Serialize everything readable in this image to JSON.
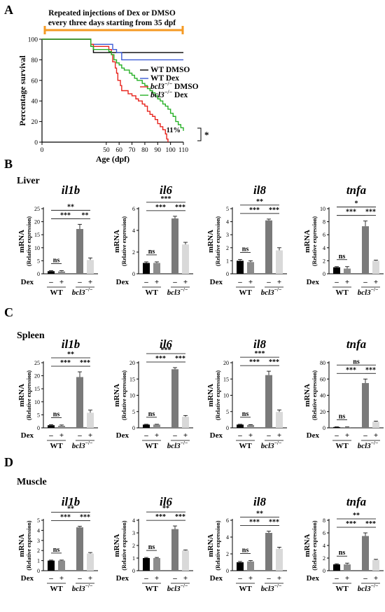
{
  "panel_labels": {
    "a": "A",
    "b": "B",
    "c": "C",
    "d": "D"
  },
  "tissues": {
    "b": "Liver",
    "c": "Spleen",
    "d": "Muscle"
  },
  "treatment": {
    "label": "Repeated injections of Dex or DMSO",
    "label2": "every three days starting from 35 dpf"
  },
  "bar_common": {
    "ylabel1": "mRNA",
    "ylabel2": "(Relative expression)",
    "dex_label": "Dex",
    "minus": "–",
    "plus": "+",
    "wt_label": "WT",
    "mutant_label": "bcl3",
    "mutant_sup": "−/−",
    "bar_colors": [
      "#000000",
      "#8c8c8c",
      "#7a7a7a",
      "#d9d9d9"
    ]
  },
  "chart_data": [
    {
      "type": "line",
      "panel": "A",
      "xlabel": "Age (dpf)",
      "ylabel": "Percentage survival",
      "xlim": [
        0,
        110
      ],
      "ylim": [
        0,
        100
      ],
      "xticks": [
        0,
        50,
        60,
        70,
        80,
        90,
        100,
        110
      ],
      "yticks": [
        0,
        20,
        40,
        60,
        80,
        100
      ],
      "annotation": "11%",
      "significance": "*",
      "series": [
        {
          "name": "WT DMSO",
          "color": "#000000",
          "x": [
            0,
            35,
            38,
            40,
            110
          ],
          "y": [
            100,
            100,
            93,
            87,
            87
          ]
        },
        {
          "name": "WT Dex",
          "color": "#3b5bd6",
          "x": [
            0,
            35,
            38,
            50,
            55,
            58,
            62,
            110
          ],
          "y": [
            100,
            100,
            95,
            95,
            90,
            87,
            80,
            80
          ]
        },
        {
          "name": "bcl3 DMSO",
          "name_sup": "−/−",
          "color": "#e8231c",
          "x": [
            0,
            35,
            38,
            40,
            49,
            52,
            54,
            55,
            57,
            58,
            59,
            61,
            62,
            65,
            67,
            70,
            73,
            75,
            78,
            80,
            82,
            84,
            86,
            88,
            90,
            92,
            94,
            96,
            97,
            98
          ],
          "y": [
            100,
            100,
            95,
            93,
            93,
            90,
            85,
            78,
            72,
            67,
            60,
            55,
            50,
            50,
            47,
            45,
            42,
            40,
            37,
            35,
            30,
            27,
            25,
            22,
            18,
            15,
            12,
            8,
            3,
            0
          ]
        },
        {
          "name": "bcl3 Dex",
          "name_sup": "−/−",
          "color": "#27b027",
          "x": [
            0,
            35,
            38,
            40,
            49,
            52,
            54,
            56,
            58,
            60,
            62,
            64,
            66,
            68,
            70,
            72,
            74,
            76,
            78,
            80,
            82,
            84,
            86,
            88,
            90,
            92,
            94,
            96,
            98,
            100,
            102,
            104,
            106,
            108,
            110
          ],
          "y": [
            100,
            100,
            93,
            90,
            90,
            88,
            85,
            80,
            77,
            75,
            72,
            70,
            70,
            67,
            65,
            62,
            60,
            60,
            57,
            55,
            52,
            50,
            48,
            45,
            42,
            40,
            37,
            35,
            32,
            28,
            25,
            20,
            17,
            14,
            11
          ]
        }
      ]
    },
    {
      "type": "bar",
      "panel": "B",
      "tissue": "Liver",
      "gene": "il1b",
      "categories": [
        "WT -",
        "WT +",
        "bcl3-/- -",
        "bcl3-/- +"
      ],
      "values": [
        1.0,
        0.9,
        17.2,
        5.3
      ],
      "errors": [
        0.2,
        0.3,
        1.8,
        0.8
      ],
      "ylim": [
        0,
        25
      ],
      "yticks": [
        0,
        5,
        10,
        15,
        20,
        25
      ],
      "significance": [
        {
          "a": 0,
          "b": 1,
          "text": "ns"
        },
        {
          "a": 0,
          "b": 2,
          "text": "***"
        },
        {
          "a": 2,
          "b": 3,
          "text": "**"
        },
        {
          "a": 0,
          "b": 3,
          "text": "**"
        }
      ]
    },
    {
      "type": "bar",
      "panel": "B",
      "tissue": "Liver",
      "gene": "il6",
      "categories": [
        "WT -",
        "WT +",
        "bcl3-/- -",
        "bcl3-/- +"
      ],
      "values": [
        1.0,
        1.0,
        5.1,
        2.7
      ],
      "errors": [
        0.1,
        0.1,
        0.2,
        0.2
      ],
      "ylim": [
        0,
        6
      ],
      "yticks": [
        0,
        2,
        4,
        6
      ],
      "significance": [
        {
          "a": 0,
          "b": 1,
          "text": "ns"
        },
        {
          "a": 0,
          "b": 2,
          "text": "***"
        },
        {
          "a": 2,
          "b": 3,
          "text": "***"
        },
        {
          "a": 0,
          "b": 3,
          "text": "***"
        }
      ]
    },
    {
      "type": "bar",
      "panel": "B",
      "tissue": "Liver",
      "gene": "il8",
      "categories": [
        "WT -",
        "WT +",
        "bcl3-/- -",
        "bcl3-/- +"
      ],
      "values": [
        1.0,
        0.9,
        4.1,
        1.8
      ],
      "errors": [
        0.1,
        0.1,
        0.1,
        0.2
      ],
      "ylim": [
        0,
        5
      ],
      "yticks": [
        0,
        1,
        2,
        3,
        4,
        5
      ],
      "significance": [
        {
          "a": 0,
          "b": 1,
          "text": "ns"
        },
        {
          "a": 0,
          "b": 2,
          "text": "***"
        },
        {
          "a": 2,
          "b": 3,
          "text": "***"
        },
        {
          "a": 0,
          "b": 3,
          "text": "**"
        }
      ]
    },
    {
      "type": "bar",
      "panel": "B",
      "tissue": "Liver",
      "gene": "tnfa",
      "categories": [
        "WT -",
        "WT +",
        "bcl3-/- -",
        "bcl3-/- +"
      ],
      "values": [
        1.0,
        0.8,
        7.3,
        2.0
      ],
      "errors": [
        0.1,
        0.3,
        0.8,
        0.1
      ],
      "ylim": [
        0,
        10
      ],
      "yticks": [
        0,
        2,
        4,
        6,
        8,
        10
      ],
      "significance": [
        {
          "a": 0,
          "b": 1,
          "text": "ns"
        },
        {
          "a": 0,
          "b": 2,
          "text": "***"
        },
        {
          "a": 2,
          "b": 3,
          "text": "***"
        },
        {
          "a": 0,
          "b": 3,
          "text": "*"
        }
      ]
    },
    {
      "type": "bar",
      "panel": "C",
      "tissue": "Spleen",
      "gene": "il1b",
      "categories": [
        "WT -",
        "WT +",
        "bcl3-/- -",
        "bcl3-/- +"
      ],
      "values": [
        1.0,
        0.8,
        19.5,
        5.8
      ],
      "errors": [
        0.2,
        0.3,
        2.0,
        1.0
      ],
      "ylim": [
        0,
        25
      ],
      "yticks": [
        0,
        5,
        10,
        15,
        20,
        25
      ],
      "significance": [
        {
          "a": 0,
          "b": 1,
          "text": "ns"
        },
        {
          "a": 0,
          "b": 2,
          "text": "***"
        },
        {
          "a": 2,
          "b": 3,
          "text": "***"
        },
        {
          "a": 0,
          "b": 3,
          "text": "**"
        }
      ]
    },
    {
      "type": "bar",
      "panel": "C",
      "tissue": "Spleen",
      "gene": "il6",
      "categories": [
        "WT -",
        "WT +",
        "bcl3-/- -",
        "bcl3-/- +"
      ],
      "values": [
        1.0,
        1.0,
        18.0,
        3.4
      ],
      "errors": [
        0.1,
        0.1,
        0.5,
        0.4
      ],
      "ylim": [
        0,
        20
      ],
      "yticks": [
        0,
        5,
        10,
        15,
        20
      ],
      "significance": [
        {
          "a": 0,
          "b": 1,
          "text": "ns"
        },
        {
          "a": 0,
          "b": 2,
          "text": "***"
        },
        {
          "a": 2,
          "b": 3,
          "text": "***"
        },
        {
          "a": 0,
          "b": 3,
          "text": "***"
        }
      ]
    },
    {
      "type": "bar",
      "panel": "C",
      "tissue": "Spleen",
      "gene": "il8",
      "categories": [
        "WT -",
        "WT +",
        "bcl3-/- -",
        "bcl3-/- +"
      ],
      "values": [
        1.0,
        0.9,
        16.2,
        4.9
      ],
      "errors": [
        0.1,
        0.1,
        1.2,
        0.6
      ],
      "ylim": [
        0,
        20
      ],
      "yticks": [
        0,
        5,
        10,
        15,
        20
      ],
      "significance": [
        {
          "a": 0,
          "b": 1,
          "text": "ns"
        },
        {
          "a": 0,
          "b": 2,
          "text": "***"
        },
        {
          "a": 2,
          "b": 3,
          "text": "***"
        },
        {
          "a": 0,
          "b": 3,
          "text": "***"
        }
      ]
    },
    {
      "type": "bar",
      "panel": "C",
      "tissue": "Spleen",
      "gene": "tnfa",
      "categories": [
        "WT -",
        "WT +",
        "bcl3-/- -",
        "bcl3-/- +"
      ],
      "values": [
        1.0,
        0.8,
        55.0,
        7.5
      ],
      "errors": [
        0.2,
        0.3,
        5.0,
        0.8
      ],
      "ylim": [
        0,
        80
      ],
      "yticks": [
        0,
        20,
        40,
        60,
        80
      ],
      "significance": [
        {
          "a": 0,
          "b": 1,
          "text": "ns"
        },
        {
          "a": 0,
          "b": 2,
          "text": "***"
        },
        {
          "a": 2,
          "b": 3,
          "text": "***"
        },
        {
          "a": 0,
          "b": 3,
          "text": "ns"
        }
      ]
    },
    {
      "type": "bar",
      "panel": "D",
      "tissue": "Muscle",
      "gene": "il1b",
      "categories": [
        "WT -",
        "WT +",
        "bcl3-/- -",
        "bcl3-/- +"
      ],
      "values": [
        1.0,
        1.0,
        4.3,
        1.7
      ],
      "errors": [
        0.05,
        0.05,
        0.1,
        0.1
      ],
      "ylim": [
        0,
        5
      ],
      "yticks": [
        0,
        1,
        2,
        3,
        4,
        5
      ],
      "significance": [
        {
          "a": 0,
          "b": 1,
          "text": "ns"
        },
        {
          "a": 0,
          "b": 2,
          "text": "***"
        },
        {
          "a": 2,
          "b": 3,
          "text": "***"
        },
        {
          "a": 0,
          "b": 3,
          "text": "**"
        }
      ]
    },
    {
      "type": "bar",
      "panel": "D",
      "tissue": "Muscle",
      "gene": "il6",
      "categories": [
        "WT -",
        "WT +",
        "bcl3-/- -",
        "bcl3-/- +"
      ],
      "values": [
        1.0,
        1.0,
        3.3,
        1.6
      ],
      "errors": [
        0.05,
        0.05,
        0.25,
        0.05
      ],
      "ylim": [
        0,
        4
      ],
      "yticks": [
        0,
        1,
        2,
        3,
        4
      ],
      "significance": [
        {
          "a": 0,
          "b": 1,
          "text": "ns"
        },
        {
          "a": 0,
          "b": 2,
          "text": "***"
        },
        {
          "a": 2,
          "b": 3,
          "text": "***"
        },
        {
          "a": 0,
          "b": 3,
          "text": "**"
        }
      ]
    },
    {
      "type": "bar",
      "panel": "D",
      "tissue": "Muscle",
      "gene": "il8",
      "categories": [
        "WT -",
        "WT +",
        "bcl3-/- -",
        "bcl3-/- +"
      ],
      "values": [
        1.0,
        1.1,
        4.5,
        2.6
      ],
      "errors": [
        0.1,
        0.1,
        0.2,
        0.2
      ],
      "ylim": [
        0,
        6
      ],
      "yticks": [
        0,
        2,
        4,
        6
      ],
      "significance": [
        {
          "a": 0,
          "b": 1,
          "text": "ns"
        },
        {
          "a": 0,
          "b": 2,
          "text": "***"
        },
        {
          "a": 2,
          "b": 3,
          "text": "***"
        },
        {
          "a": 0,
          "b": 3,
          "text": "**"
        }
      ]
    },
    {
      "type": "bar",
      "panel": "D",
      "tissue": "Muscle",
      "gene": "tnfa",
      "categories": [
        "WT -",
        "WT +",
        "bcl3-/- -",
        "bcl3-/- +"
      ],
      "values": [
        1.0,
        1.0,
        5.5,
        1.7
      ],
      "errors": [
        0.1,
        0.2,
        0.5,
        0.1
      ],
      "ylim": [
        0,
        8
      ],
      "yticks": [
        0,
        2,
        4,
        6,
        8
      ],
      "significance": [
        {
          "a": 0,
          "b": 1,
          "text": "ns"
        },
        {
          "a": 0,
          "b": 2,
          "text": "***"
        },
        {
          "a": 2,
          "b": 3,
          "text": "***"
        },
        {
          "a": 0,
          "b": 3,
          "text": "**"
        }
      ]
    }
  ]
}
